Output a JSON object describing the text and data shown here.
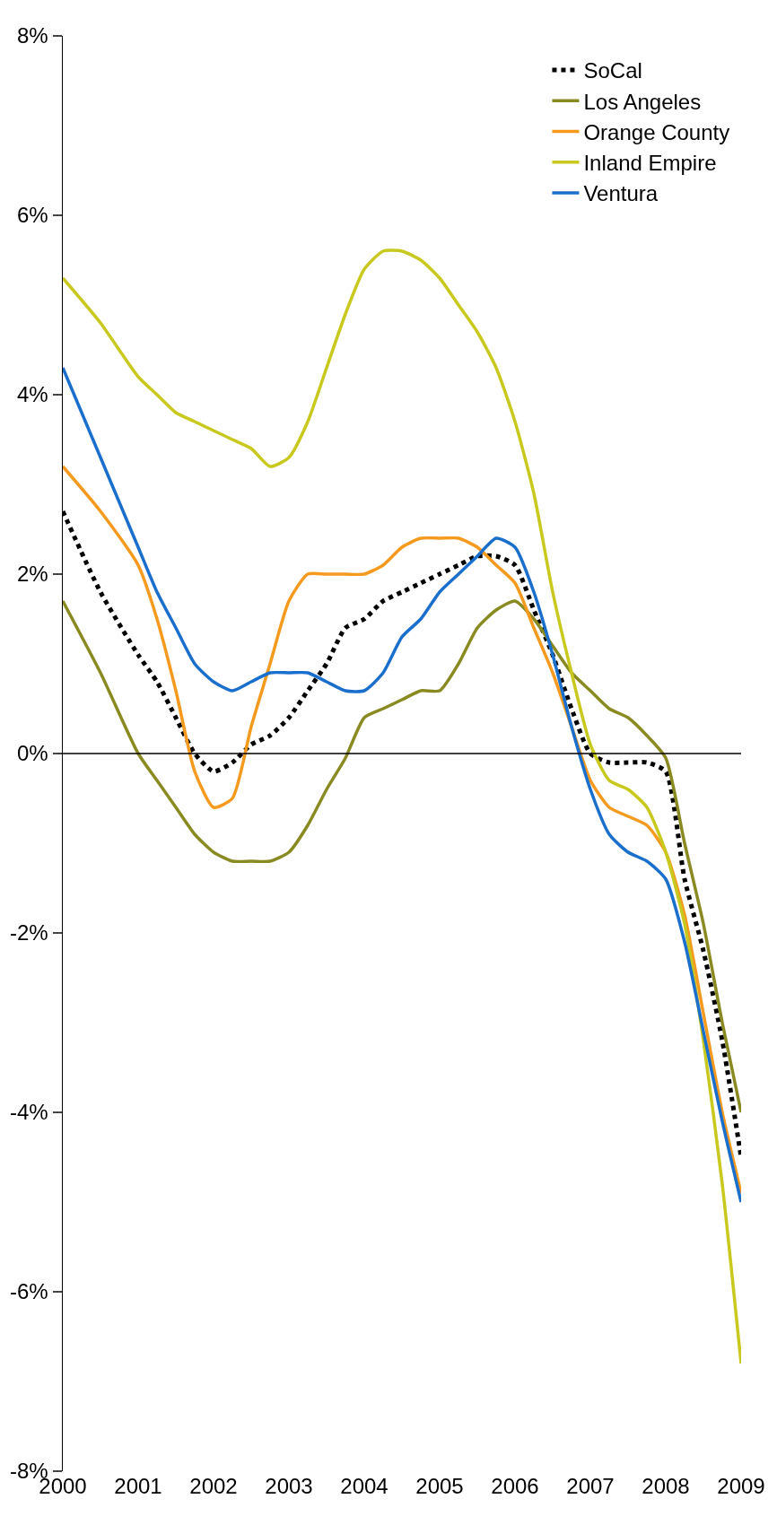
{
  "chart_data": {
    "type": "line",
    "x": [
      2000,
      2000.5,
      2001,
      2001.25,
      2001.5,
      2001.75,
      2002,
      2002.25,
      2002.5,
      2002.75,
      2003,
      2003.25,
      2003.5,
      2003.75,
      2004,
      2004.25,
      2004.5,
      2004.75,
      2005,
      2005.25,
      2005.5,
      2005.75,
      2006,
      2006.25,
      2006.5,
      2006.75,
      2007,
      2007.25,
      2007.5,
      2007.75,
      2008,
      2008.25,
      2008.5,
      2008.75,
      2009
    ],
    "series": [
      {
        "name": "SoCal",
        "color": "#000000",
        "line_style": "dotted",
        "values": [
          2.7,
          1.8,
          1.1,
          0.8,
          0.4,
          0.0,
          -0.2,
          -0.1,
          0.1,
          0.2,
          0.4,
          0.7,
          1.0,
          1.4,
          1.5,
          1.7,
          1.8,
          1.9,
          2.0,
          2.1,
          2.2,
          2.2,
          2.1,
          1.6,
          1.1,
          0.5,
          0.0,
          -0.1,
          -0.1,
          -0.1,
          -0.2,
          -1.4,
          -2.2,
          -3.2,
          -4.5
        ]
      },
      {
        "name": "Los Angeles",
        "color": "#8a8a22",
        "line_style": "solid",
        "values": [
          1.7,
          0.9,
          0.0,
          -0.3,
          -0.6,
          -0.9,
          -1.1,
          -1.2,
          -1.2,
          -1.2,
          -1.1,
          -0.8,
          -0.4,
          -0.05,
          0.4,
          0.5,
          0.6,
          0.7,
          0.7,
          1.0,
          1.4,
          1.6,
          1.7,
          1.5,
          1.2,
          0.9,
          0.7,
          0.5,
          0.4,
          0.2,
          -0.05,
          -1.0,
          -1.9,
          -3.0,
          -4.0
        ]
      },
      {
        "name": "Orange County",
        "color": "#f59a1e",
        "line_style": "solid",
        "values": [
          3.2,
          2.7,
          2.1,
          1.5,
          0.7,
          -0.2,
          -0.6,
          -0.5,
          0.3,
          1.0,
          1.7,
          2.0,
          2.0,
          2.0,
          2.0,
          2.1,
          2.3,
          2.4,
          2.4,
          2.4,
          2.3,
          2.1,
          1.9,
          1.4,
          0.9,
          0.3,
          -0.3,
          -0.6,
          -0.7,
          -0.8,
          -1.1,
          -1.8,
          -2.9,
          -4.0,
          -4.9
        ]
      },
      {
        "name": "Inland Empire",
        "color": "#c8c81e",
        "line_style": "solid",
        "values": [
          5.3,
          4.8,
          4.2,
          4.0,
          3.8,
          3.7,
          3.6,
          3.5,
          3.4,
          3.2,
          3.3,
          3.7,
          4.3,
          4.9,
          5.4,
          5.6,
          5.6,
          5.5,
          5.3,
          5.0,
          4.7,
          4.3,
          3.7,
          2.9,
          1.8,
          0.9,
          0.1,
          -0.3,
          -0.4,
          -0.6,
          -1.1,
          -1.9,
          -3.2,
          -4.8,
          -6.8
        ]
      },
      {
        "name": "Ventura",
        "color": "#1a6fcc",
        "line_style": "solid",
        "values": [
          4.3,
          3.3,
          2.3,
          1.8,
          1.4,
          1.0,
          0.8,
          0.7,
          0.8,
          0.9,
          0.9,
          0.9,
          0.8,
          0.7,
          0.7,
          0.9,
          1.3,
          1.5,
          1.8,
          2.0,
          2.2,
          2.4,
          2.3,
          1.8,
          1.1,
          0.3,
          -0.4,
          -0.9,
          -1.1,
          -1.2,
          -1.4,
          -2.1,
          -3.1,
          -4.1,
          -5.0
        ]
      }
    ],
    "xlim": [
      2000,
      2009
    ],
    "xticks": [
      2000,
      2001,
      2002,
      2003,
      2004,
      2005,
      2006,
      2007,
      2008,
      2009
    ],
    "ylim": [
      -8,
      8
    ],
    "yticks": [
      {
        "value": -8,
        "label": "-8%"
      },
      {
        "value": -6,
        "label": "-6%"
      },
      {
        "value": -4,
        "label": "-4%"
      },
      {
        "value": -2,
        "label": "-2%"
      },
      {
        "value": 0,
        "label": "0%"
      },
      {
        "value": 2,
        "label": "2%"
      },
      {
        "value": 4,
        "label": "4%"
      },
      {
        "value": 6,
        "label": "6%"
      },
      {
        "value": 8,
        "label": "8%"
      }
    ],
    "ref_lines": [
      {
        "axis": "y",
        "value": 0,
        "color": "#000000"
      }
    ],
    "grid": false,
    "legend": "top right",
    "marker": "none"
  }
}
